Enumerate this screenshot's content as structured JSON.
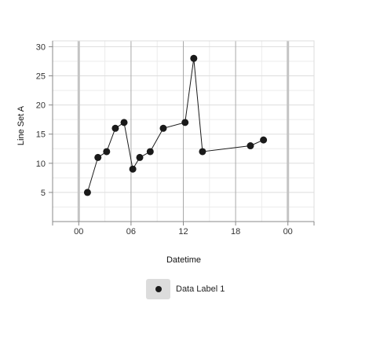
{
  "chart_data": {
    "type": "line",
    "ylabel": "Line Set A",
    "xlabel": "Datetime",
    "x_tick_labels": [
      "00",
      "06",
      "12",
      "18",
      "00"
    ],
    "x_tick_hours": [
      0,
      6,
      12,
      18,
      24
    ],
    "xlim_hours": [
      -3,
      27
    ],
    "ylim": [
      0,
      31
    ],
    "y_ticks": [
      5,
      10,
      15,
      20,
      25,
      30
    ],
    "grid": true,
    "legend_position": "bottom",
    "series": [
      {
        "name": "Data Label 1",
        "color": "#1a1a1a",
        "marker": "circle",
        "x_hours": [
          1,
          2.2,
          3.2,
          4.2,
          5.2,
          6.2,
          7,
          8.2,
          9.7,
          12.2,
          13.2,
          14.2,
          19.7,
          21.2
        ],
        "values": [
          5,
          11,
          12,
          16,
          17,
          9,
          11,
          12,
          16,
          17,
          28,
          12,
          13,
          14
        ]
      }
    ]
  }
}
